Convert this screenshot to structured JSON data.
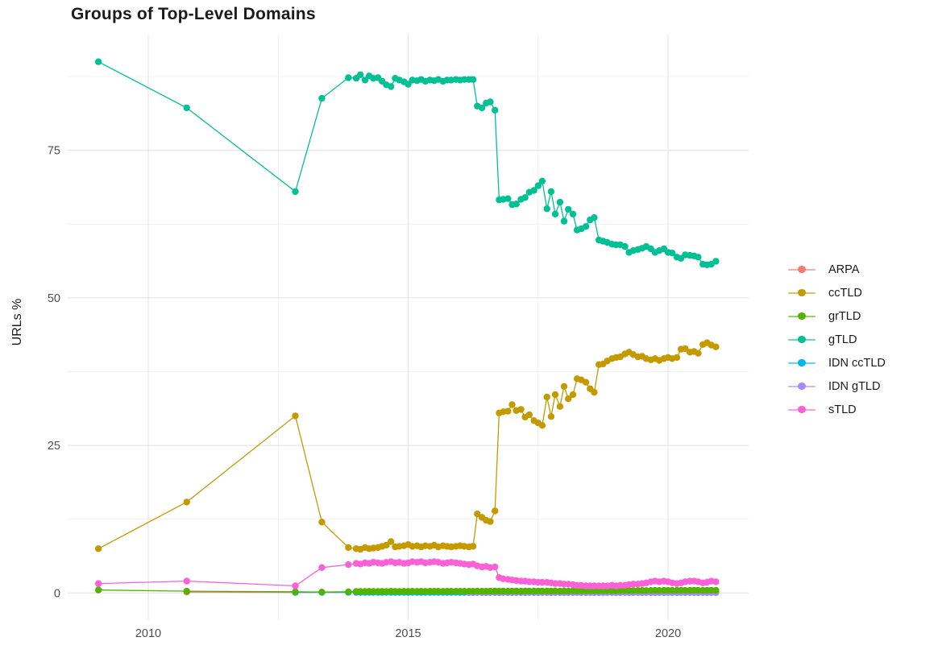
{
  "chart_data": {
    "type": "line",
    "title": "Groups of Top-Level Domains",
    "xlabel": "",
    "ylabel": "URLs %",
    "grid": true,
    "legend_position": "right",
    "xlim": [
      2008.45,
      2021.55
    ],
    "ylim": [
      -4.6,
      94.6
    ],
    "x_ticks": [
      {
        "v": 2010,
        "label": "2010"
      },
      {
        "v": 2015,
        "label": "2015"
      },
      {
        "v": 2020,
        "label": "2020"
      }
    ],
    "y_ticks": [
      {
        "v": 0,
        "label": "0"
      },
      {
        "v": 25,
        "label": "25"
      },
      {
        "v": 50,
        "label": "50"
      },
      {
        "v": 75,
        "label": "75"
      }
    ],
    "x_minor": [
      2012.5,
      2017.5
    ],
    "y_minor": [
      12.5,
      37.5,
      62.5,
      87.5
    ],
    "colors": {
      "major_grid": "#e4e4e4",
      "minor_grid": "#f0f0f0",
      "axis_text": "#4d4d4d"
    },
    "draw_order": [
      "ARPA",
      "IDN ccTLD",
      "IDN gTLD",
      "ccTLD",
      "grTLD",
      "gTLD",
      "sTLD"
    ],
    "x_monthly": [
      2014.0,
      2014.08,
      2014.17,
      2014.25,
      2014.33,
      2014.42,
      2014.5,
      2014.58,
      2014.67,
      2014.75,
      2014.83,
      2014.92,
      2015.0,
      2015.08,
      2015.17,
      2015.25,
      2015.33,
      2015.42,
      2015.5,
      2015.58,
      2015.67,
      2015.75,
      2015.83,
      2015.92,
      2016.0,
      2016.08,
      2016.17,
      2016.25,
      2016.33,
      2016.42,
      2016.5,
      2016.58,
      2016.67,
      2016.75,
      2016.83,
      2016.92,
      2017.0,
      2017.08,
      2017.17,
      2017.25,
      2017.33,
      2017.42,
      2017.5,
      2017.58,
      2017.67,
      2017.75,
      2017.83,
      2017.92,
      2018.0,
      2018.08,
      2018.17,
      2018.25,
      2018.33,
      2018.42,
      2018.5,
      2018.58,
      2018.67,
      2018.75,
      2018.83,
      2018.92,
      2019.0,
      2019.08,
      2019.17,
      2019.25,
      2019.33,
      2019.42,
      2019.5,
      2019.58,
      2019.67,
      2019.75,
      2019.83,
      2019.92,
      2020.0,
      2020.08,
      2020.17,
      2020.25,
      2020.33,
      2020.42,
      2020.5,
      2020.58,
      2020.67,
      2020.75,
      2020.83,
      2020.92
    ],
    "series": [
      {
        "name": "ARPA",
        "color": "#F8766D",
        "sparse": [
          [
            2010.74,
            0.15
          ],
          [
            2012.83,
            0.1
          ]
        ],
        "monthly": null
      },
      {
        "name": "ccTLD",
        "color": "#C49A00",
        "sparse": [
          [
            2009.04,
            7.5
          ],
          [
            2010.74,
            15.4
          ],
          [
            2012.83,
            30.0
          ],
          [
            2013.34,
            12.0
          ],
          [
            2013.85,
            7.7
          ]
        ],
        "monthly": [
          7.5,
          7.4,
          7.7,
          7.5,
          7.6,
          7.7,
          7.9,
          8.1,
          8.7,
          7.8,
          7.9,
          8.0,
          8.2,
          7.9,
          8.0,
          7.8,
          8.0,
          7.9,
          8.1,
          7.8,
          8.0,
          7.9,
          7.8,
          7.9,
          8.0,
          7.9,
          7.8,
          7.9,
          13.4,
          12.8,
          12.3,
          12.1,
          13.9,
          30.5,
          30.7,
          30.8,
          31.9,
          30.9,
          31.1,
          29.8,
          30.2,
          29.2,
          28.8,
          28.4,
          33.2,
          29.9,
          33.6,
          31.6,
          35.0,
          32.9,
          33.6,
          36.3,
          36.1,
          35.7,
          34.6,
          34.0,
          38.7,
          38.8,
          39.3,
          39.7,
          39.9,
          40.0,
          40.5,
          40.8,
          40.4,
          40.0,
          40.1,
          39.7,
          39.5,
          39.7,
          39.4,
          39.7,
          39.9,
          39.7,
          39.9,
          41.3,
          41.4,
          40.8,
          40.9,
          40.6,
          42.1,
          42.4,
          42.0,
          41.7
        ]
      },
      {
        "name": "grTLD",
        "color": "#53B400",
        "sparse": [
          [
            2009.04,
            0.5
          ],
          [
            2010.74,
            0.3
          ],
          [
            2012.83,
            0.2
          ],
          [
            2013.34,
            0.15
          ],
          [
            2013.85,
            0.2
          ]
        ],
        "monthly": [
          0.25,
          0.26,
          0.25,
          0.27,
          0.26,
          0.25,
          0.27,
          0.26,
          0.28,
          0.27,
          0.26,
          0.27,
          0.27,
          0.28,
          0.27,
          0.28,
          0.27,
          0.28,
          0.29,
          0.28,
          0.27,
          0.28,
          0.29,
          0.28,
          0.28,
          0.29,
          0.28,
          0.29,
          0.3,
          0.3,
          0.29,
          0.3,
          0.31,
          0.3,
          0.31,
          0.3,
          0.3,
          0.31,
          0.3,
          0.31,
          0.32,
          0.31,
          0.32,
          0.33,
          0.32,
          0.33,
          0.34,
          0.33,
          0.34,
          0.33,
          0.35,
          0.34,
          0.35,
          0.36,
          0.35,
          0.36,
          0.37,
          0.36,
          0.37,
          0.38,
          0.38,
          0.39,
          0.4,
          0.39,
          0.4,
          0.41,
          0.42,
          0.41,
          0.42,
          0.43,
          0.42,
          0.43,
          0.44,
          0.43,
          0.44,
          0.45,
          0.44,
          0.45,
          0.46,
          0.45,
          0.44,
          0.45,
          0.46,
          0.45
        ]
      },
      {
        "name": "gTLD",
        "color": "#00C094",
        "sparse": [
          [
            2009.04,
            90.0
          ],
          [
            2010.74,
            82.2
          ],
          [
            2012.83,
            68.0
          ],
          [
            2013.34,
            83.8
          ],
          [
            2013.85,
            87.3
          ]
        ],
        "monthly": [
          87.2,
          87.8,
          86.9,
          87.6,
          87.2,
          87.3,
          86.7,
          86.1,
          85.8,
          87.2,
          86.9,
          86.6,
          86.2,
          86.9,
          86.8,
          87.0,
          86.7,
          86.9,
          86.8,
          87.0,
          86.7,
          86.9,
          86.9,
          87.0,
          86.9,
          87.0,
          87.0,
          87.0,
          82.5,
          82.2,
          83.0,
          83.2,
          81.8,
          66.6,
          66.7,
          66.8,
          65.8,
          65.9,
          66.7,
          67.0,
          67.9,
          68.2,
          69.0,
          69.8,
          65.1,
          68.0,
          64.2,
          66.2,
          63.0,
          65.0,
          64.2,
          61.5,
          61.7,
          62.1,
          63.2,
          63.6,
          59.8,
          59.6,
          59.4,
          59.1,
          59.0,
          59.0,
          58.7,
          57.7,
          58.0,
          58.2,
          58.4,
          58.7,
          58.3,
          57.7,
          58.0,
          58.3,
          57.7,
          57.6,
          56.9,
          56.7,
          57.3,
          57.2,
          57.1,
          56.9,
          55.7,
          55.6,
          55.7,
          56.2
        ]
      },
      {
        "name": "IDN ccTLD",
        "color": "#00B6EB",
        "sparse": [
          [
            2012.83,
            0.1
          ],
          [
            2013.34,
            0.1
          ],
          [
            2013.85,
            0.1
          ]
        ],
        "monthly": [
          0.1,
          0.09,
          0.1,
          0.11,
          0.1,
          0.09,
          0.1,
          0.11,
          0.1,
          0.1,
          0.09,
          0.1,
          0.1,
          0.11,
          0.1,
          0.09,
          0.1,
          0.1,
          0.11,
          0.1,
          0.09,
          0.1,
          0.1,
          0.11,
          0.1,
          0.1,
          0.09,
          0.1,
          0.11,
          0.1,
          0.1,
          0.09,
          0.1,
          0.1,
          0.11,
          0.1,
          0.09,
          0.1,
          0.1,
          0.11,
          0.1,
          0.1,
          0.09,
          0.1,
          0.11,
          0.1,
          0.1,
          0.09,
          0.1,
          0.1,
          0.11,
          0.1,
          0.09,
          0.1,
          0.1,
          0.11,
          0.1,
          0.1,
          0.09,
          0.1,
          0.1,
          0.11,
          0.1,
          0.09,
          0.1,
          0.1,
          0.11,
          0.1,
          0.09,
          0.1,
          0.1,
          0.11,
          0.1,
          0.1,
          0.09,
          0.1,
          0.11,
          0.1,
          0.1,
          0.09,
          0.1,
          0.11,
          0.1,
          0.1
        ]
      },
      {
        "name": "IDN gTLD",
        "color": "#A58AFF",
        "sparse": [],
        "monthly": [
          null,
          null,
          null,
          null,
          null,
          null,
          null,
          null,
          null,
          null,
          null,
          null,
          null,
          null,
          null,
          null,
          null,
          null,
          null,
          null,
          null,
          null,
          null,
          null,
          null,
          null,
          0.05,
          0.05,
          0.06,
          0.05,
          0.05,
          0.06,
          0.05,
          0.05,
          0.06,
          0.05,
          0.05,
          0.06,
          0.05,
          0.05,
          0.06,
          0.05,
          0.05,
          0.06,
          0.05,
          0.05,
          0.06,
          0.05,
          0.06,
          0.05,
          0.05,
          0.06,
          0.05,
          0.05,
          0.06,
          0.05,
          0.05,
          0.06,
          0.05,
          0.06,
          0.05,
          0.05,
          0.06,
          0.05,
          0.05,
          0.06,
          0.05,
          0.06,
          0.05,
          0.05,
          0.06,
          0.05,
          0.06,
          0.05,
          0.05,
          0.06,
          0.05,
          0.06,
          0.05,
          0.05,
          0.06,
          0.05,
          0.06,
          0.05
        ]
      },
      {
        "name": "sTLD",
        "color": "#FB61D7",
        "sparse": [
          [
            2009.04,
            1.6
          ],
          [
            2010.74,
            2.0
          ],
          [
            2012.83,
            1.2
          ],
          [
            2013.34,
            4.3
          ],
          [
            2013.85,
            4.8
          ]
        ],
        "monthly": [
          5.0,
          4.9,
          5.1,
          5.0,
          5.2,
          5.1,
          5.0,
          5.2,
          5.3,
          5.1,
          5.2,
          5.0,
          5.1,
          5.3,
          5.2,
          5.3,
          5.1,
          5.2,
          5.3,
          5.2,
          5.0,
          5.1,
          5.2,
          5.1,
          5.0,
          4.9,
          4.8,
          4.9,
          4.6,
          4.4,
          4.5,
          4.3,
          4.4,
          2.6,
          2.4,
          2.3,
          2.2,
          2.1,
          2.0,
          2.0,
          1.9,
          1.9,
          1.8,
          1.8,
          1.8,
          1.7,
          1.6,
          1.6,
          1.5,
          1.5,
          1.4,
          1.3,
          1.3,
          1.2,
          1.2,
          1.2,
          1.2,
          1.2,
          1.2,
          1.3,
          1.2,
          1.3,
          1.3,
          1.4,
          1.5,
          1.5,
          1.6,
          1.7,
          1.9,
          2.0,
          1.9,
          2.0,
          1.9,
          1.7,
          1.6,
          1.7,
          1.9,
          2.0,
          2.0,
          1.9,
          1.7,
          1.8,
          2.0,
          1.9
        ]
      }
    ]
  }
}
